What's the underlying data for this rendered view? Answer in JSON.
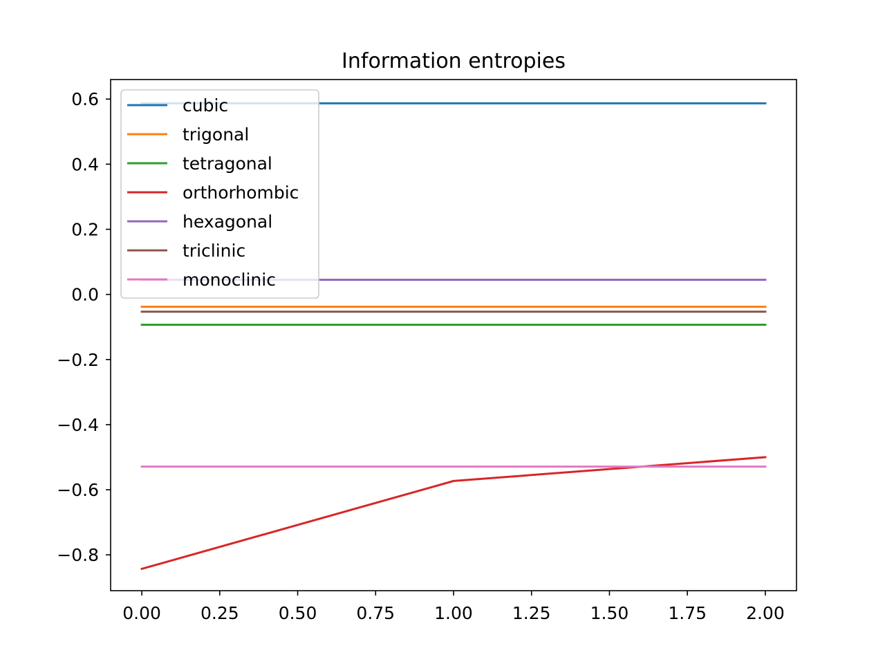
{
  "chart_data": {
    "type": "line",
    "title": "Information entropies",
    "xlabel": "",
    "ylabel": "",
    "xlim": [
      -0.1,
      2.1
    ],
    "ylim": [
      -0.91,
      0.66
    ],
    "xticks": [
      0.0,
      0.25,
      0.5,
      0.75,
      1.0,
      1.25,
      1.5,
      1.75,
      2.0
    ],
    "xtick_labels": [
      "0.00",
      "0.25",
      "0.50",
      "0.75",
      "1.00",
      "1.25",
      "1.50",
      "1.75",
      "2.00"
    ],
    "yticks": [
      0.6,
      0.4,
      0.2,
      0.0,
      -0.2,
      -0.4,
      -0.6,
      -0.8
    ],
    "ytick_labels": [
      "0.6",
      "0.4",
      "0.2",
      "0.0",
      "−0.2",
      "−0.4",
      "−0.6",
      "−0.8"
    ],
    "grid": false,
    "legend_position": "top-left",
    "x": [
      0,
      1,
      2
    ],
    "series": [
      {
        "name": "cubic",
        "color": "#1f77b4",
        "values": [
          0.587,
          0.587,
          0.587
        ]
      },
      {
        "name": "trigonal",
        "color": "#ff7f0e",
        "values": [
          -0.038,
          -0.038,
          -0.038
        ]
      },
      {
        "name": "tetragonal",
        "color": "#2ca02c",
        "values": [
          -0.093,
          -0.093,
          -0.093
        ]
      },
      {
        "name": "orthorhombic",
        "color": "#d62728",
        "values": [
          -0.843,
          -0.573,
          -0.5
        ]
      },
      {
        "name": "hexagonal",
        "color": "#9467bd",
        "values": [
          0.045,
          0.045,
          0.045
        ]
      },
      {
        "name": "triclinic",
        "color": "#8c564b",
        "values": [
          -0.053,
          -0.053,
          -0.053
        ]
      },
      {
        "name": "monoclinic",
        "color": "#e377c2",
        "values": [
          -0.529,
          -0.529,
          -0.529
        ]
      }
    ]
  }
}
